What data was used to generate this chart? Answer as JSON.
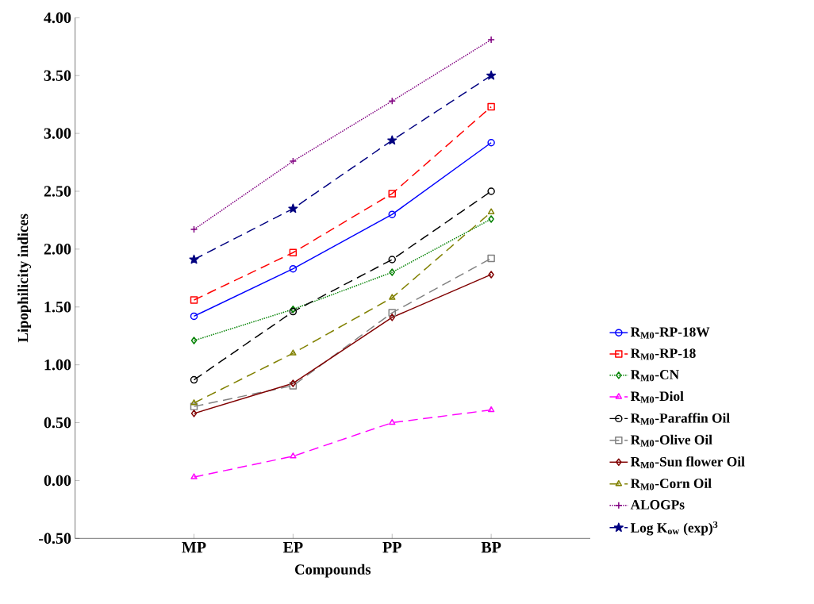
{
  "chart_data": {
    "type": "line",
    "xlabel": "Compounds",
    "ylabel": "Lipophilicity indices",
    "categories": [
      "MP",
      "EP",
      "PP",
      "BP"
    ],
    "ylim": [
      -0.5,
      4.0
    ],
    "yticks": [
      {
        "value": -0.5,
        "label": "-0.50"
      },
      {
        "value": 0,
        "label": "0.00"
      },
      {
        "value": 0.5,
        "label": "0.50"
      },
      {
        "value": 1,
        "label": "1.00"
      },
      {
        "value": 1.5,
        "label": "1.50"
      },
      {
        "value": 2,
        "label": "2.00"
      },
      {
        "value": 2.5,
        "label": "2.50"
      },
      {
        "value": 3,
        "label": "3.00"
      },
      {
        "value": 3.5,
        "label": "3.50"
      },
      {
        "value": 4,
        "label": "4.00"
      }
    ],
    "legend": "right",
    "grid": false,
    "series": [
      {
        "name": "R$_{M0}$-RP-18W",
        "color": "#0000ff",
        "marker": "circle",
        "line_style": "solid",
        "values": [
          1.42,
          1.83,
          2.3,
          2.92
        ]
      },
      {
        "name": "R$_{M0}$-RP-18",
        "color": "#ff0000",
        "marker": "square",
        "line_style": "dashed",
        "values": [
          1.56,
          1.97,
          2.48,
          3.23
        ]
      },
      {
        "name": "R$_{M0}$-CN",
        "color": "#008000",
        "marker": "diamond",
        "line_style": "dotted",
        "values": [
          1.21,
          1.48,
          1.8,
          2.26
        ]
      },
      {
        "name": "R$_{M0}$-Diol",
        "color": "#ff00ff",
        "marker": "triangle",
        "line_style": "dashed",
        "values": [
          0.03,
          0.21,
          0.5,
          0.61
        ]
      },
      {
        "name": "R$_{M0}$-Paraffin Oil",
        "color": "#000000",
        "marker": "circle",
        "line_style": "dashed",
        "values": [
          0.87,
          1.46,
          1.91,
          2.5
        ]
      },
      {
        "name": "R$_{M0}$-Olive Oil",
        "color": "#808080",
        "marker": "square",
        "line_style": "dashed",
        "values": [
          0.64,
          0.82,
          1.45,
          1.92
        ]
      },
      {
        "name": "R$_{M0}$-Sun flower Oil",
        "color": "#800000",
        "marker": "diamond",
        "line_style": "solid",
        "values": [
          0.58,
          0.84,
          1.41,
          1.78
        ]
      },
      {
        "name": "R$_{M0}$-Corn Oil",
        "color": "#808000",
        "marker": "triangle",
        "line_style": "dashed",
        "values": [
          0.67,
          1.1,
          1.58,
          2.32
        ]
      },
      {
        "name": "ALOGPs",
        "color": "#800080",
        "marker": "cross",
        "line_style": "dotted",
        "values": [
          2.17,
          2.76,
          3.28,
          3.81
        ]
      },
      {
        "name": "Log K$_{ow}$ (exp)$^{3}$",
        "color": "#000080",
        "marker": "star",
        "line_style": "dashed",
        "values": [
          1.91,
          2.35,
          2.94,
          3.5
        ]
      }
    ]
  }
}
